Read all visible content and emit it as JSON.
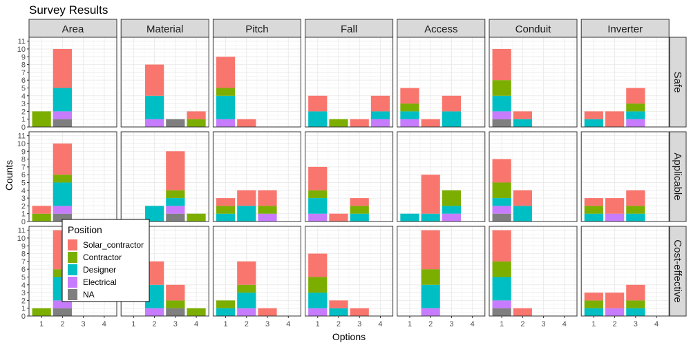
{
  "chart_data": {
    "type": "bar",
    "stacked": true,
    "title": "Survey Results",
    "xlabel": "Options",
    "ylabel": "Counts",
    "x_ticks": [
      "1",
      "2",
      "3",
      "4"
    ],
    "y_ticks": [
      "0",
      "1",
      "2",
      "3",
      "4",
      "5",
      "6",
      "7",
      "8",
      "9",
      "10",
      "11"
    ],
    "ylim": [
      0,
      11.5
    ],
    "grid": true,
    "columns": [
      "Area",
      "Material",
      "Pitch",
      "Fall",
      "Access",
      "Conduit",
      "Inverter"
    ],
    "rows": [
      "Safe",
      "Applicable",
      "Cost-effective"
    ],
    "legend": {
      "title": "Position",
      "placement": "inside-bottom-left",
      "entries": [
        "Solar_contractor",
        "Contractor",
        "Designer",
        "Electrical",
        "NA"
      ]
    },
    "colors": {
      "Solar_contractor": "#F8766D",
      "Contractor": "#7CAE00",
      "Designer": "#00BFC4",
      "Electrical": "#C77CFF",
      "NA": "#7F7F7F"
    },
    "stack_order_bottom_to_top": [
      "NA",
      "Electrical",
      "Designer",
      "Contractor",
      "Solar_contractor"
    ],
    "panels": [
      {
        "row": "Safe",
        "col": "Area",
        "bars": [
          {
            "x": 1,
            "NA": 0,
            "Electrical": 0,
            "Designer": 0,
            "Contractor": 2,
            "Solar_contractor": 0
          },
          {
            "x": 2,
            "NA": 1,
            "Electrical": 1,
            "Designer": 3,
            "Contractor": 0,
            "Solar_contractor": 5
          }
        ]
      },
      {
        "row": "Safe",
        "col": "Material",
        "bars": [
          {
            "x": 2,
            "NA": 0,
            "Electrical": 1,
            "Designer": 3,
            "Contractor": 0,
            "Solar_contractor": 4
          },
          {
            "x": 3,
            "NA": 1,
            "Electrical": 0,
            "Designer": 0,
            "Contractor": 0,
            "Solar_contractor": 0
          },
          {
            "x": 4,
            "NA": 0,
            "Electrical": 0,
            "Designer": 0,
            "Contractor": 1,
            "Solar_contractor": 1
          }
        ]
      },
      {
        "row": "Safe",
        "col": "Pitch",
        "bars": [
          {
            "x": 1,
            "NA": 0,
            "Electrical": 1,
            "Designer": 3,
            "Contractor": 1,
            "Solar_contractor": 4
          },
          {
            "x": 2,
            "NA": 0,
            "Electrical": 0,
            "Designer": 0,
            "Contractor": 0,
            "Solar_contractor": 1
          }
        ]
      },
      {
        "row": "Safe",
        "col": "Fall",
        "bars": [
          {
            "x": 1,
            "NA": 0,
            "Electrical": 0,
            "Designer": 2,
            "Contractor": 0,
            "Solar_contractor": 2
          },
          {
            "x": 2,
            "NA": 0,
            "Electrical": 0,
            "Designer": 0,
            "Contractor": 1,
            "Solar_contractor": 0
          },
          {
            "x": 3,
            "NA": 0,
            "Electrical": 0,
            "Designer": 0,
            "Contractor": 0,
            "Solar_contractor": 1
          },
          {
            "x": 4,
            "NA": 0,
            "Electrical": 1,
            "Designer": 1,
            "Contractor": 0,
            "Solar_contractor": 2
          }
        ]
      },
      {
        "row": "Safe",
        "col": "Access",
        "bars": [
          {
            "x": 1,
            "NA": 0,
            "Electrical": 1,
            "Designer": 1,
            "Contractor": 1,
            "Solar_contractor": 2
          },
          {
            "x": 2,
            "NA": 0,
            "Electrical": 0,
            "Designer": 0,
            "Contractor": 0,
            "Solar_contractor": 1
          },
          {
            "x": 3,
            "NA": 0,
            "Electrical": 0,
            "Designer": 2,
            "Contractor": 0,
            "Solar_contractor": 2
          }
        ]
      },
      {
        "row": "Safe",
        "col": "Conduit",
        "bars": [
          {
            "x": 1,
            "NA": 1,
            "Electrical": 1,
            "Designer": 2,
            "Contractor": 2,
            "Solar_contractor": 4
          },
          {
            "x": 2,
            "NA": 0,
            "Electrical": 0,
            "Designer": 1,
            "Contractor": 0,
            "Solar_contractor": 1
          }
        ]
      },
      {
        "row": "Safe",
        "col": "Inverter",
        "bars": [
          {
            "x": 1,
            "NA": 0,
            "Electrical": 0,
            "Designer": 1,
            "Contractor": 0,
            "Solar_contractor": 1
          },
          {
            "x": 2,
            "NA": 0,
            "Electrical": 0,
            "Designer": 0,
            "Contractor": 0,
            "Solar_contractor": 2
          },
          {
            "x": 3,
            "NA": 0,
            "Electrical": 1,
            "Designer": 1,
            "Contractor": 1,
            "Solar_contractor": 2
          }
        ]
      },
      {
        "row": "Applicable",
        "col": "Area",
        "bars": [
          {
            "x": 1,
            "NA": 0,
            "Electrical": 0,
            "Designer": 0,
            "Contractor": 1,
            "Solar_contractor": 1
          },
          {
            "x": 2,
            "NA": 1,
            "Electrical": 1,
            "Designer": 3,
            "Contractor": 1,
            "Solar_contractor": 4
          }
        ]
      },
      {
        "row": "Applicable",
        "col": "Material",
        "bars": [
          {
            "x": 2,
            "NA": 0,
            "Electrical": 0,
            "Designer": 2,
            "Contractor": 0,
            "Solar_contractor": 0
          },
          {
            "x": 3,
            "NA": 1,
            "Electrical": 1,
            "Designer": 1,
            "Contractor": 1,
            "Solar_contractor": 5
          },
          {
            "x": 4,
            "NA": 0,
            "Electrical": 0,
            "Designer": 0,
            "Contractor": 1,
            "Solar_contractor": 0
          }
        ]
      },
      {
        "row": "Applicable",
        "col": "Pitch",
        "bars": [
          {
            "x": 1,
            "NA": 0,
            "Electrical": 0,
            "Designer": 1,
            "Contractor": 1,
            "Solar_contractor": 1
          },
          {
            "x": 2,
            "NA": 0,
            "Electrical": 0,
            "Designer": 2,
            "Contractor": 0,
            "Solar_contractor": 2
          },
          {
            "x": 3,
            "NA": 0,
            "Electrical": 1,
            "Designer": 0,
            "Contractor": 1,
            "Solar_contractor": 2
          }
        ]
      },
      {
        "row": "Applicable",
        "col": "Fall",
        "bars": [
          {
            "x": 1,
            "NA": 0,
            "Electrical": 1,
            "Designer": 2,
            "Contractor": 1,
            "Solar_contractor": 3
          },
          {
            "x": 2,
            "NA": 0,
            "Electrical": 0,
            "Designer": 0,
            "Contractor": 0,
            "Solar_contractor": 1
          },
          {
            "x": 3,
            "NA": 0,
            "Electrical": 0,
            "Designer": 1,
            "Contractor": 1,
            "Solar_contractor": 1
          }
        ]
      },
      {
        "row": "Applicable",
        "col": "Access",
        "bars": [
          {
            "x": 1,
            "NA": 0,
            "Electrical": 0,
            "Designer": 1,
            "Contractor": 0,
            "Solar_contractor": 0
          },
          {
            "x": 2,
            "NA": 0,
            "Electrical": 0,
            "Designer": 1,
            "Contractor": 0,
            "Solar_contractor": 5
          },
          {
            "x": 3,
            "NA": 0,
            "Electrical": 1,
            "Designer": 1,
            "Contractor": 2,
            "Solar_contractor": 0
          }
        ]
      },
      {
        "row": "Applicable",
        "col": "Conduit",
        "bars": [
          {
            "x": 1,
            "NA": 1,
            "Electrical": 1,
            "Designer": 1,
            "Contractor": 2,
            "Solar_contractor": 3
          },
          {
            "x": 2,
            "NA": 0,
            "Electrical": 0,
            "Designer": 2,
            "Contractor": 0,
            "Solar_contractor": 2
          }
        ]
      },
      {
        "row": "Applicable",
        "col": "Inverter",
        "bars": [
          {
            "x": 1,
            "NA": 0,
            "Electrical": 0,
            "Designer": 1,
            "Contractor": 1,
            "Solar_contractor": 1
          },
          {
            "x": 2,
            "NA": 0,
            "Electrical": 1,
            "Designer": 0,
            "Contractor": 0,
            "Solar_contractor": 2
          },
          {
            "x": 3,
            "NA": 0,
            "Electrical": 0,
            "Designer": 1,
            "Contractor": 1,
            "Solar_contractor": 2
          }
        ]
      },
      {
        "row": "Cost-effective",
        "col": "Area",
        "bars": [
          {
            "x": 1,
            "NA": 0,
            "Electrical": 0,
            "Designer": 0,
            "Contractor": 1,
            "Solar_contractor": 0
          },
          {
            "x": 2,
            "NA": 1,
            "Electrical": 1,
            "Designer": 3,
            "Contractor": 1,
            "Solar_contractor": 5
          }
        ]
      },
      {
        "row": "Cost-effective",
        "col": "Material",
        "bars": [
          {
            "x": 2,
            "NA": 0,
            "Electrical": 1,
            "Designer": 3,
            "Contractor": 0,
            "Solar_contractor": 3
          },
          {
            "x": 3,
            "NA": 1,
            "Electrical": 0,
            "Designer": 0,
            "Contractor": 1,
            "Solar_contractor": 2
          },
          {
            "x": 4,
            "NA": 0,
            "Electrical": 0,
            "Designer": 0,
            "Contractor": 1,
            "Solar_contractor": 0
          }
        ]
      },
      {
        "row": "Cost-effective",
        "col": "Pitch",
        "bars": [
          {
            "x": 1,
            "NA": 0,
            "Electrical": 0,
            "Designer": 1,
            "Contractor": 1,
            "Solar_contractor": 0
          },
          {
            "x": 2,
            "NA": 0,
            "Electrical": 1,
            "Designer": 2,
            "Contractor": 1,
            "Solar_contractor": 3
          },
          {
            "x": 3,
            "NA": 0,
            "Electrical": 0,
            "Designer": 0,
            "Contractor": 0,
            "Solar_contractor": 1
          }
        ]
      },
      {
        "row": "Cost-effective",
        "col": "Fall",
        "bars": [
          {
            "x": 1,
            "NA": 0,
            "Electrical": 1,
            "Designer": 2,
            "Contractor": 2,
            "Solar_contractor": 3
          },
          {
            "x": 2,
            "NA": 0,
            "Electrical": 0,
            "Designer": 1,
            "Contractor": 0,
            "Solar_contractor": 1
          },
          {
            "x": 3,
            "NA": 0,
            "Electrical": 0,
            "Designer": 0,
            "Contractor": 0,
            "Solar_contractor": 1
          }
        ]
      },
      {
        "row": "Cost-effective",
        "col": "Access",
        "bars": [
          {
            "x": 2,
            "NA": 0,
            "Electrical": 1,
            "Designer": 3,
            "Contractor": 2,
            "Solar_contractor": 5
          }
        ]
      },
      {
        "row": "Cost-effective",
        "col": "Conduit",
        "bars": [
          {
            "x": 1,
            "NA": 1,
            "Electrical": 1,
            "Designer": 3,
            "Contractor": 2,
            "Solar_contractor": 4
          },
          {
            "x": 2,
            "NA": 0,
            "Electrical": 0,
            "Designer": 0,
            "Contractor": 0,
            "Solar_contractor": 1
          }
        ]
      },
      {
        "row": "Cost-effective",
        "col": "Inverter",
        "bars": [
          {
            "x": 1,
            "NA": 0,
            "Electrical": 0,
            "Designer": 1,
            "Contractor": 1,
            "Solar_contractor": 1
          },
          {
            "x": 2,
            "NA": 0,
            "Electrical": 1,
            "Designer": 0,
            "Contractor": 0,
            "Solar_contractor": 2
          },
          {
            "x": 3,
            "NA": 0,
            "Electrical": 0,
            "Designer": 1,
            "Contractor": 1,
            "Solar_contractor": 2
          }
        ]
      }
    ]
  }
}
